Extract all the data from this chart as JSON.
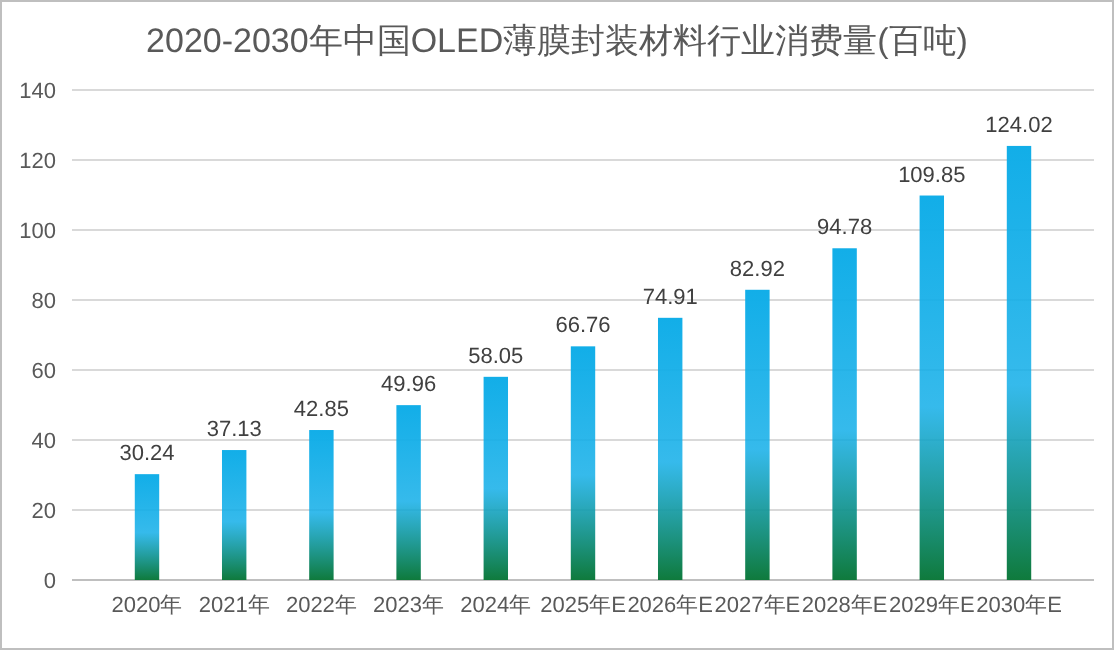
{
  "chart_data": {
    "type": "bar",
    "title": "2020-2030年中国OLED薄膜封装材料行业消费量(百吨)",
    "categories": [
      "2020年",
      "2021年",
      "2022年",
      "2023年",
      "2024年",
      "2025年E",
      "2026年E",
      "2027年E",
      "2028年E",
      "2029年E",
      "2030年E"
    ],
    "values": [
      30.24,
      37.13,
      42.85,
      49.96,
      58.05,
      66.76,
      74.91,
      82.92,
      94.78,
      109.85,
      124.02
    ],
    "color": "#12aee8",
    "ylim": [
      0,
      140
    ],
    "yticks": [
      0,
      20,
      40,
      60,
      80,
      100,
      120,
      140
    ],
    "grid": "y",
    "data_labels": true
  }
}
